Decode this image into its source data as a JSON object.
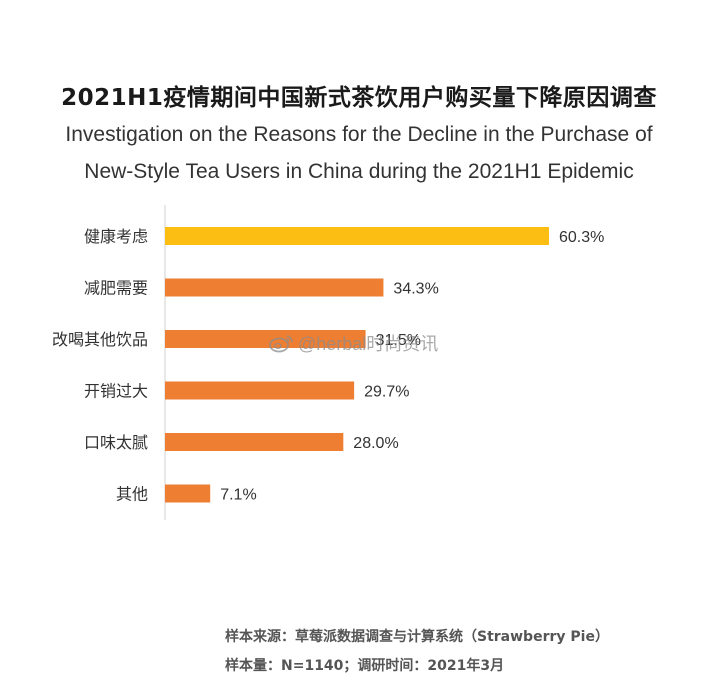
{
  "title": "2021H1疫情期间中国新式茶饮用户购买量下降原因调查",
  "subtitle_line1": "Investigation on the Reasons for the Decline in the Purchase of",
  "subtitle_line2": "New-Style Tea Users in China during the 2021H1 Epidemic",
  "watermark": "@herbal时尚资讯",
  "source_line1": "样本来源：草莓派数据调查与计算系统（Strawberry Pie）",
  "source_line2": "样本量：N=1140；调研时间：2021年3月",
  "colors": {
    "highlight": "#FDBE14",
    "bar": "#EE7E32"
  },
  "chart_data": {
    "type": "bar",
    "orientation": "horizontal",
    "categories": [
      "健康考虑",
      "减肥需要",
      "改喝其他饮品",
      "开销过大",
      "口味太腻",
      "其他"
    ],
    "values": [
      60.3,
      34.3,
      31.5,
      29.7,
      28.0,
      7.1
    ],
    "value_labels": [
      "60.3%",
      "34.3%",
      "31.5%",
      "29.7%",
      "28.0%",
      "7.1%"
    ],
    "unit": "%",
    "xlim": [
      0,
      100
    ],
    "grid": false
  }
}
